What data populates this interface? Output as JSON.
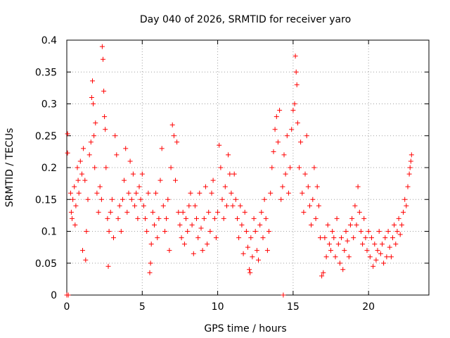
{
  "chart_data": {
    "type": "scatter",
    "title": "Day 040 of 2026, SRMTID for receiver yaro",
    "xlabel": "GPS time / hours",
    "ylabel": "SRMTID / TECUs",
    "xlim": [
      0,
      24
    ],
    "ylim": [
      0,
      0.4
    ],
    "xticks": [
      0,
      5,
      10,
      15,
      20
    ],
    "xtick_labels": [
      "0",
      "5",
      "10",
      "15",
      "20"
    ],
    "yticks": [
      0,
      0.05,
      0.1,
      0.15,
      0.2,
      0.25,
      0.3,
      0.35,
      0.4
    ],
    "ytick_labels": [
      "0",
      "0.05",
      "0.1",
      "0.15",
      "0.2",
      "0.25",
      "0.3",
      "0.35",
      "0.4"
    ],
    "grid": true,
    "marker": "plus",
    "series": [
      {
        "name": "SRMTID",
        "color": "#ff0000",
        "points": [
          [
            0.0,
            0.0
          ],
          [
            0.05,
            0.253
          ],
          [
            0.05,
            0.223
          ],
          [
            0.1,
            0.0
          ],
          [
            0.25,
            0.16
          ],
          [
            0.3,
            0.13
          ],
          [
            0.35,
            0.12
          ],
          [
            0.4,
            0.15
          ],
          [
            0.5,
            0.17
          ],
          [
            0.55,
            0.11
          ],
          [
            0.6,
            0.14
          ],
          [
            0.7,
            0.2
          ],
          [
            0.75,
            0.18
          ],
          [
            0.8,
            0.16
          ],
          [
            0.9,
            0.21
          ],
          [
            1.0,
            0.19
          ],
          [
            1.05,
            0.07
          ],
          [
            1.1,
            0.23
          ],
          [
            1.2,
            0.18
          ],
          [
            1.25,
            0.055
          ],
          [
            1.3,
            0.1
          ],
          [
            1.4,
            0.15
          ],
          [
            1.5,
            0.22
          ],
          [
            1.6,
            0.24
          ],
          [
            1.65,
            0.31
          ],
          [
            1.7,
            0.336
          ],
          [
            1.75,
            0.3
          ],
          [
            1.8,
            0.25
          ],
          [
            1.85,
            0.2
          ],
          [
            1.9,
            0.27
          ],
          [
            2.0,
            0.16
          ],
          [
            2.1,
            0.13
          ],
          [
            2.2,
            0.17
          ],
          [
            2.3,
            0.15
          ],
          [
            2.35,
            0.39
          ],
          [
            2.4,
            0.37
          ],
          [
            2.45,
            0.32
          ],
          [
            2.5,
            0.28
          ],
          [
            2.55,
            0.26
          ],
          [
            2.6,
            0.2
          ],
          [
            2.7,
            0.12
          ],
          [
            2.75,
            0.045
          ],
          [
            2.8,
            0.1
          ],
          [
            2.9,
            0.13
          ],
          [
            3.0,
            0.15
          ],
          [
            3.1,
            0.09
          ],
          [
            3.2,
            0.25
          ],
          [
            3.3,
            0.22
          ],
          [
            3.4,
            0.12
          ],
          [
            3.5,
            0.14
          ],
          [
            3.6,
            0.1
          ],
          [
            3.7,
            0.15
          ],
          [
            3.8,
            0.18
          ],
          [
            3.9,
            0.23
          ],
          [
            4.0,
            0.13
          ],
          [
            4.1,
            0.16
          ],
          [
            4.2,
            0.21
          ],
          [
            4.3,
            0.15
          ],
          [
            4.4,
            0.19
          ],
          [
            4.5,
            0.14
          ],
          [
            4.6,
            0.16
          ],
          [
            4.7,
            0.12
          ],
          [
            4.8,
            0.17
          ],
          [
            4.9,
            0.15
          ],
          [
            5.0,
            0.19
          ],
          [
            5.1,
            0.14
          ],
          [
            5.2,
            0.12
          ],
          [
            5.3,
            0.1
          ],
          [
            5.4,
            0.16
          ],
          [
            5.5,
            0.035
          ],
          [
            5.55,
            0.05
          ],
          [
            5.6,
            0.08
          ],
          [
            5.7,
            0.13
          ],
          [
            5.8,
            0.11
          ],
          [
            5.9,
            0.16
          ],
          [
            6.0,
            0.09
          ],
          [
            6.1,
            0.12
          ],
          [
            6.2,
            0.18
          ],
          [
            6.3,
            0.23
          ],
          [
            6.4,
            0.14
          ],
          [
            6.5,
            0.1
          ],
          [
            6.6,
            0.12
          ],
          [
            6.7,
            0.15
          ],
          [
            6.8,
            0.07
          ],
          [
            6.9,
            0.2
          ],
          [
            7.0,
            0.267
          ],
          [
            7.1,
            0.25
          ],
          [
            7.2,
            0.18
          ],
          [
            7.3,
            0.24
          ],
          [
            7.4,
            0.13
          ],
          [
            7.5,
            0.11
          ],
          [
            7.6,
            0.09
          ],
          [
            7.7,
            0.13
          ],
          [
            7.8,
            0.08
          ],
          [
            7.9,
            0.12
          ],
          [
            8.0,
            0.1
          ],
          [
            8.1,
            0.14
          ],
          [
            8.2,
            0.16
          ],
          [
            8.3,
            0.11
          ],
          [
            8.4,
            0.065
          ],
          [
            8.5,
            0.14
          ],
          [
            8.6,
            0.12
          ],
          [
            8.7,
            0.09
          ],
          [
            8.8,
            0.16
          ],
          [
            8.9,
            0.105
          ],
          [
            9.0,
            0.07
          ],
          [
            9.1,
            0.12
          ],
          [
            9.2,
            0.17
          ],
          [
            9.3,
            0.08
          ],
          [
            9.4,
            0.13
          ],
          [
            9.5,
            0.1
          ],
          [
            9.6,
            0.16
          ],
          [
            9.7,
            0.18
          ],
          [
            9.8,
            0.12
          ],
          [
            9.9,
            0.09
          ],
          [
            10.0,
            0.13
          ],
          [
            10.1,
            0.235
          ],
          [
            10.2,
            0.2
          ],
          [
            10.3,
            0.15
          ],
          [
            10.4,
            0.12
          ],
          [
            10.5,
            0.17
          ],
          [
            10.6,
            0.14
          ],
          [
            10.7,
            0.22
          ],
          [
            10.8,
            0.19
          ],
          [
            10.9,
            0.16
          ],
          [
            11.0,
            0.14
          ],
          [
            11.1,
            0.19
          ],
          [
            11.2,
            0.15
          ],
          [
            11.3,
            0.12
          ],
          [
            11.4,
            0.09
          ],
          [
            11.5,
            0.14
          ],
          [
            11.6,
            0.11
          ],
          [
            11.7,
            0.065
          ],
          [
            11.8,
            0.13
          ],
          [
            11.9,
            0.1
          ],
          [
            12.0,
            0.075
          ],
          [
            12.1,
            0.04
          ],
          [
            12.15,
            0.035
          ],
          [
            12.2,
            0.09
          ],
          [
            12.3,
            0.06
          ],
          [
            12.4,
            0.12
          ],
          [
            12.5,
            0.1
          ],
          [
            12.6,
            0.07
          ],
          [
            12.7,
            0.055
          ],
          [
            12.8,
            0.11
          ],
          [
            12.9,
            0.13
          ],
          [
            13.0,
            0.09
          ],
          [
            13.1,
            0.15
          ],
          [
            13.2,
            0.12
          ],
          [
            13.3,
            0.07
          ],
          [
            13.4,
            0.1
          ],
          [
            13.5,
            0.16
          ],
          [
            13.6,
            0.2
          ],
          [
            13.7,
            0.225
          ],
          [
            13.8,
            0.26
          ],
          [
            13.9,
            0.28
          ],
          [
            14.0,
            0.24
          ],
          [
            14.1,
            0.29
          ],
          [
            14.2,
            0.15
          ],
          [
            14.3,
            0.17
          ],
          [
            14.35,
            0.0
          ],
          [
            14.4,
            0.22
          ],
          [
            14.5,
            0.19
          ],
          [
            14.6,
            0.25
          ],
          [
            14.7,
            0.16
          ],
          [
            14.8,
            0.2
          ],
          [
            14.9,
            0.26
          ],
          [
            15.0,
            0.29
          ],
          [
            15.1,
            0.3
          ],
          [
            15.15,
            0.375
          ],
          [
            15.2,
            0.35
          ],
          [
            15.25,
            0.33
          ],
          [
            15.3,
            0.27
          ],
          [
            15.4,
            0.2
          ],
          [
            15.5,
            0.24
          ],
          [
            15.6,
            0.16
          ],
          [
            15.7,
            0.13
          ],
          [
            15.8,
            0.19
          ],
          [
            15.9,
            0.25
          ],
          [
            16.0,
            0.17
          ],
          [
            16.1,
            0.14
          ],
          [
            16.2,
            0.11
          ],
          [
            16.3,
            0.15
          ],
          [
            16.4,
            0.2
          ],
          [
            16.5,
            0.12
          ],
          [
            16.6,
            0.17
          ],
          [
            16.7,
            0.14
          ],
          [
            16.8,
            0.09
          ],
          [
            16.9,
            0.03
          ],
          [
            17.0,
            0.035
          ],
          [
            17.1,
            0.09
          ],
          [
            17.2,
            0.06
          ],
          [
            17.3,
            0.11
          ],
          [
            17.4,
            0.08
          ],
          [
            17.5,
            0.07
          ],
          [
            17.6,
            0.1
          ],
          [
            17.7,
            0.09
          ],
          [
            17.8,
            0.06
          ],
          [
            17.9,
            0.12
          ],
          [
            18.0,
            0.08
          ],
          [
            18.1,
            0.05
          ],
          [
            18.2,
            0.09
          ],
          [
            18.3,
            0.04
          ],
          [
            18.4,
            0.07
          ],
          [
            18.5,
            0.1
          ],
          [
            18.6,
            0.085
          ],
          [
            18.7,
            0.06
          ],
          [
            18.8,
            0.11
          ],
          [
            18.9,
            0.12
          ],
          [
            19.0,
            0.09
          ],
          [
            19.1,
            0.14
          ],
          [
            19.2,
            0.11
          ],
          [
            19.3,
            0.17
          ],
          [
            19.4,
            0.13
          ],
          [
            19.5,
            0.1
          ],
          [
            19.6,
            0.08
          ],
          [
            19.7,
            0.12
          ],
          [
            19.8,
            0.09
          ],
          [
            19.9,
            0.07
          ],
          [
            20.0,
            0.1
          ],
          [
            20.1,
            0.06
          ],
          [
            20.2,
            0.09
          ],
          [
            20.3,
            0.045
          ],
          [
            20.4,
            0.08
          ],
          [
            20.5,
            0.055
          ],
          [
            20.6,
            0.07
          ],
          [
            20.7,
            0.1
          ],
          [
            20.8,
            0.065
          ],
          [
            20.9,
            0.08
          ],
          [
            21.0,
            0.05
          ],
          [
            21.1,
            0.09
          ],
          [
            21.2,
            0.06
          ],
          [
            21.3,
            0.1
          ],
          [
            21.4,
            0.075
          ],
          [
            21.5,
            0.06
          ],
          [
            21.6,
            0.09
          ],
          [
            21.7,
            0.11
          ],
          [
            21.8,
            0.08
          ],
          [
            21.9,
            0.1
          ],
          [
            22.0,
            0.12
          ],
          [
            22.1,
            0.095
          ],
          [
            22.2,
            0.11
          ],
          [
            22.3,
            0.13
          ],
          [
            22.4,
            0.15
          ],
          [
            22.5,
            0.14
          ],
          [
            22.6,
            0.17
          ],
          [
            22.7,
            0.19
          ],
          [
            22.75,
            0.2
          ],
          [
            22.8,
            0.21
          ],
          [
            22.85,
            0.22
          ]
        ]
      }
    ]
  }
}
